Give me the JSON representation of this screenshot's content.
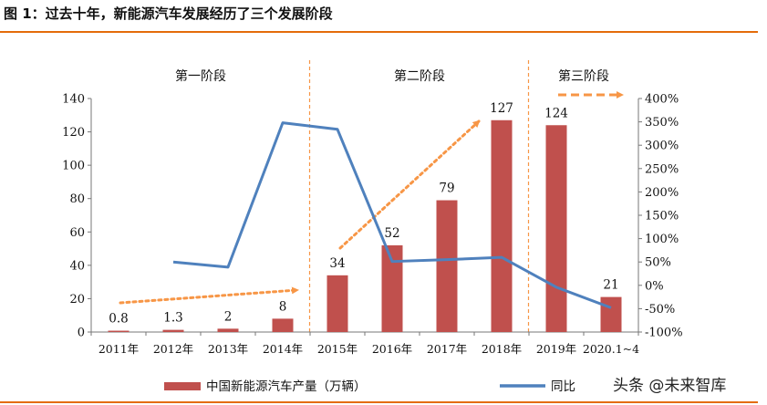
{
  "figure": {
    "title": "图 1：过去十年，新能源汽车发展经历了三个发展阶段",
    "watermark": "头条 @未来智库"
  },
  "colors": {
    "bar": "#c0504d",
    "line": "#4f81bd",
    "trend_arrow": "#f79646",
    "title_rule": "#e46c0a"
  },
  "chart_data": {
    "type": "bar",
    "categories": [
      "2011年",
      "2012年",
      "2013年",
      "2014年",
      "2015年",
      "2016年",
      "2017年",
      "2018年",
      "2019年",
      "2020.1~4"
    ],
    "series": [
      {
        "name": "中国新能源汽车产量（万辆）",
        "type": "bar",
        "axis": "left",
        "values": [
          0.8,
          1.3,
          2,
          8,
          34,
          52,
          79,
          127,
          124,
          21
        ],
        "data_labels": [
          "0.8",
          "1.3",
          "2",
          "8",
          "34",
          "52",
          "79",
          "127",
          "124",
          "21"
        ]
      },
      {
        "name": "同比",
        "type": "line",
        "axis": "right",
        "values": [
          null,
          50,
          39,
          348,
          334,
          51,
          55,
          60,
          -4,
          -48
        ]
      }
    ],
    "y_left": {
      "range": [
        0,
        140
      ],
      "ticks": [
        "0",
        "20",
        "40",
        "60",
        "80",
        "100",
        "120",
        "140"
      ]
    },
    "y_right": {
      "range": [
        -100,
        400
      ],
      "ticks": [
        "-100%",
        "-50%",
        "0%",
        "50%",
        "100%",
        "150%",
        "200%",
        "250%",
        "300%",
        "350%",
        "400%"
      ]
    },
    "stages": [
      "第一阶段",
      "第二阶段",
      "第三阶段"
    ],
    "legend": [
      "中国新能源汽车产量（万辆）",
      "同比"
    ],
    "legend_position": "bottom",
    "grid": false
  }
}
